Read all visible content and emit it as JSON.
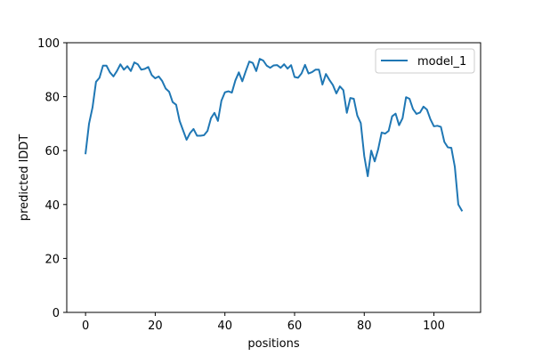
{
  "chart_data": {
    "type": "line",
    "title": "",
    "xlabel": "positions",
    "ylabel": "predicted lDDT",
    "xlim": [
      -5.4,
      113.4
    ],
    "ylim": [
      0,
      100
    ],
    "xticks": [
      0,
      20,
      40,
      60,
      80,
      100
    ],
    "yticks": [
      0,
      20,
      40,
      60,
      80,
      100
    ],
    "grid": false,
    "legend_position": "top-right",
    "series": [
      {
        "name": "model_1",
        "color": "#1f77b4",
        "x": [
          0,
          1,
          2,
          3,
          4,
          5,
          6,
          7,
          8,
          9,
          10,
          11,
          12,
          13,
          14,
          15,
          16,
          17,
          18,
          19,
          20,
          21,
          22,
          23,
          24,
          25,
          26,
          27,
          28,
          29,
          30,
          31,
          32,
          33,
          34,
          35,
          36,
          37,
          38,
          39,
          40,
          41,
          42,
          43,
          44,
          45,
          46,
          47,
          48,
          49,
          50,
          51,
          52,
          53,
          54,
          55,
          56,
          57,
          58,
          59,
          60,
          61,
          62,
          63,
          64,
          65,
          66,
          67,
          68,
          69,
          70,
          71,
          72,
          73,
          74,
          75,
          76,
          77,
          78,
          79,
          80,
          81,
          82,
          83,
          84,
          85,
          86,
          87,
          88,
          89,
          90,
          91,
          92,
          93,
          94,
          95,
          96,
          97,
          98,
          99,
          100,
          101,
          102,
          103,
          104,
          105,
          106,
          107,
          108
        ],
        "y": [
          59,
          70,
          76,
          85.5,
          87,
          91.5,
          91.5,
          89,
          87.5,
          89.5,
          92,
          90,
          91.3,
          89.5,
          92.7,
          92,
          90,
          90.3,
          91,
          88,
          86.8,
          87.5,
          85.8,
          83,
          81.8,
          78,
          77,
          71,
          67.5,
          64,
          66.5,
          68,
          65.5,
          65.5,
          65.7,
          67.3,
          72,
          74,
          71,
          78.5,
          81.6,
          82,
          81.5,
          86,
          89,
          85.7,
          89.5,
          93,
          92.5,
          89.5,
          94,
          93.4,
          91.5,
          90.7,
          91.6,
          91.7,
          90.7,
          92,
          90.4,
          91.7,
          87.3,
          87,
          88.6,
          91.8,
          88.6,
          89.1,
          90,
          90,
          84.5,
          88.4,
          86.2,
          84.3,
          81.2,
          83.8,
          82.4,
          74,
          79.5,
          79.2,
          73,
          70.2,
          58,
          50.5,
          60,
          56,
          60.5,
          66.7,
          66.3,
          67.3,
          72.7,
          73.7,
          69.4,
          72,
          79.8,
          79.2,
          75.4,
          73.6,
          74.1,
          76.3,
          75.2,
          71.6,
          69,
          69.2,
          68.8,
          63.2,
          61.2,
          61,
          54,
          40,
          37.8
        ]
      }
    ]
  }
}
